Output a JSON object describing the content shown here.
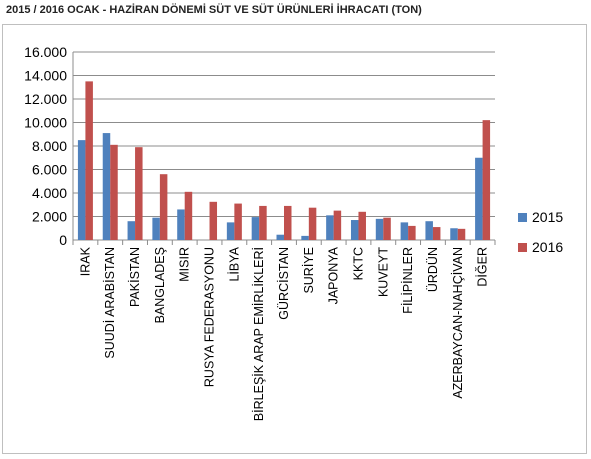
{
  "chart_data": {
    "type": "bar",
    "title": "2015 / 2016 OCAK - HAZİRAN DÖNEMİ SÜT VE SÜT ÜRÜNLERİ İHRACATI (TON)",
    "categories": [
      "IRAK",
      "SUUDİ ARABİSTAN",
      "PAKİSTAN",
      "BANGLADEŞ",
      "MISIR",
      "RUSYA FEDERASYONU",
      "LİBYA",
      "BİRLEŞİK ARAP EMİRLİKLERİ",
      "GÜRCİSTAN",
      "SURİYE",
      "JAPONYA",
      "KKTC",
      "KUVEYT",
      "FİLİPİNLER",
      "ÜRDÜN",
      "AZERBAYCAN-NAHÇİVAN",
      "DİĞER"
    ],
    "series": [
      {
        "name": "2015",
        "color": "#4f81bd",
        "values": [
          8500,
          9100,
          1600,
          1900,
          2600,
          0,
          1500,
          1950,
          450,
          350,
          2100,
          1700,
          1800,
          1500,
          1600,
          1000,
          7000
        ]
      },
      {
        "name": "2016",
        "color": "#c0504d",
        "values": [
          13500,
          8100,
          7900,
          5600,
          4100,
          3250,
          3100,
          2900,
          2900,
          2750,
          2500,
          2400,
          1900,
          1200,
          1100,
          950,
          10200
        ]
      }
    ],
    "ylim": [
      0,
      16000
    ],
    "yticks": [
      "0",
      "2.000",
      "4.000",
      "6.000",
      "8.000",
      "10.000",
      "12.000",
      "14.000",
      "16.000"
    ],
    "grid": true,
    "legend": "right"
  }
}
